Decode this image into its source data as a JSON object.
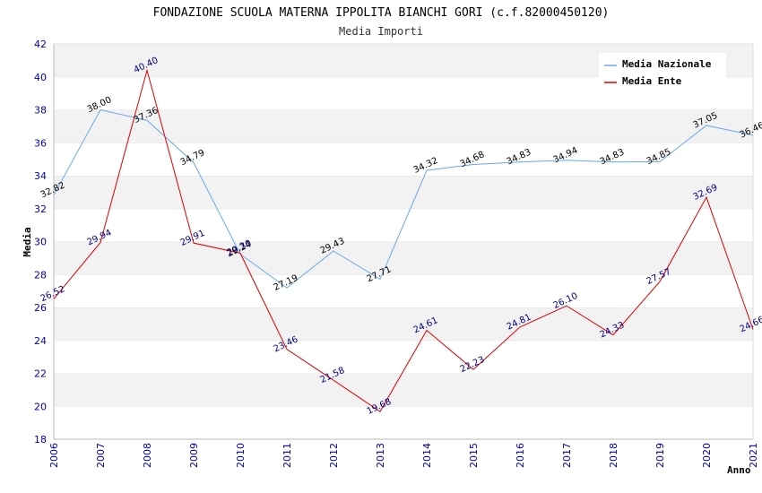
{
  "chart_data": {
    "type": "line",
    "title": "FONDAZIONE SCUOLA MATERNA IPPOLITA BIANCHI GORI (c.f.82000450120)",
    "subtitle": "Media Importi",
    "xlabel": "Anno",
    "ylabel": "Media",
    "ylim": [
      18,
      42
    ],
    "yticks": [
      18,
      20,
      22,
      24,
      26,
      28,
      30,
      32,
      34,
      36,
      38,
      40,
      42
    ],
    "x": [
      "2006",
      "2007",
      "2008",
      "2009",
      "2010",
      "2011",
      "2012",
      "2013",
      "2014",
      "2015",
      "2016",
      "2017",
      "2018",
      "2019",
      "2020",
      "2021"
    ],
    "grid": "horizontal alternating bands",
    "legend_position": "top-right",
    "series": [
      {
        "name": "Media Nazionale",
        "color": "#6aa8e8",
        "label_color": "#000000",
        "values": [
          32.82,
          38.0,
          37.36,
          34.79,
          29.24,
          27.19,
          29.43,
          27.71,
          34.32,
          34.68,
          34.83,
          34.94,
          34.83,
          34.85,
          37.05,
          36.46
        ],
        "labels": [
          "32.82",
          "38.00",
          "37.36",
          "34.79",
          "29.24",
          "27.19",
          "29.43",
          "27.71",
          "34.32",
          "34.68",
          "34.83",
          "34.94",
          "34.83",
          "34.85",
          "37.05",
          "36.46"
        ]
      },
      {
        "name": "Media Ente",
        "color": "#dd0000",
        "label_color": "#000080",
        "values": [
          26.52,
          29.94,
          40.4,
          29.91,
          29.3,
          23.46,
          21.58,
          19.68,
          24.61,
          22.23,
          24.81,
          26.1,
          24.33,
          27.57,
          32.69,
          24.66
        ],
        "labels": [
          "26.52",
          "29.94",
          "40.40",
          "29.91",
          "29.30",
          "23.46",
          "21.58",
          "19.68",
          "24.61",
          "22.23",
          "24.81",
          "26.10",
          "24.33",
          "27.57",
          "32.69",
          "24.66"
        ]
      }
    ]
  }
}
